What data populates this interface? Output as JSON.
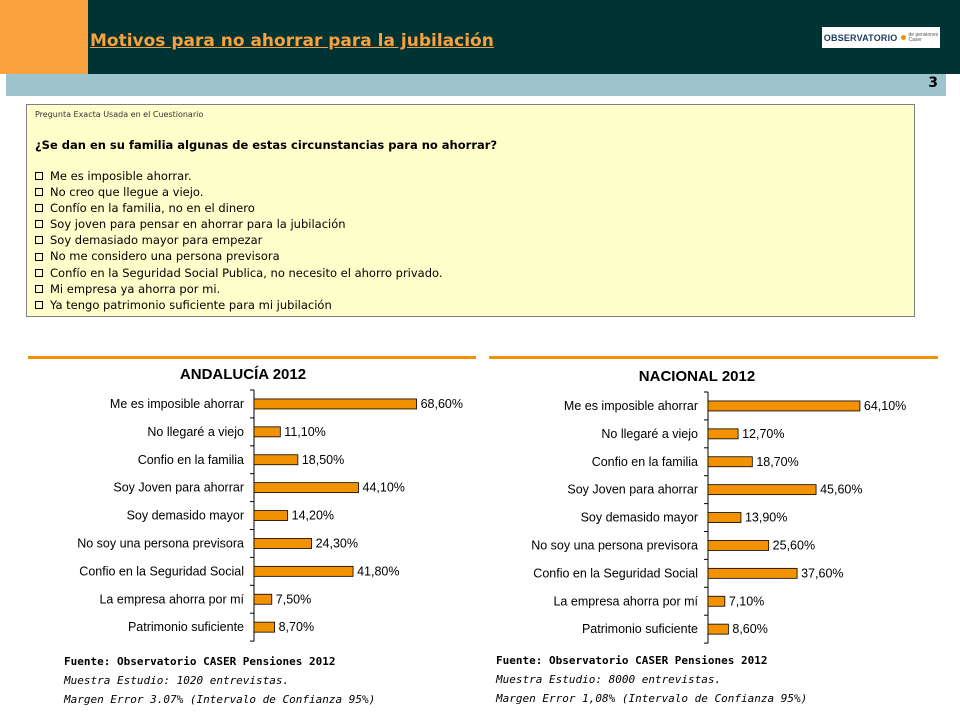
{
  "header": {
    "title": "Motivos para no ahorrar para la jubilación",
    "logo_main": "OBSERVATORIO",
    "logo_sub_1": "de pensiones",
    "logo_sub_2": "Caser",
    "page_number": "3"
  },
  "colors": {
    "accent_orange": "#f9a03f",
    "header_dark": "#003333",
    "band_blue": "#9dc3cd",
    "box_yellow": "#ffffcc",
    "bar_fill": "#f39200"
  },
  "question_box": {
    "caption": "Pregunta Exacta Usada en el Cuestionario",
    "question": "¿Se dan en su familia algunas de estas circunstancias para no ahorrar?",
    "options": [
      "Me es imposible  ahorrar.",
      "No creo que llegue  a viejo.",
      "Confío en la familia, no en el dinero",
      "Soy joven para pensar en ahorrar para la jubilación",
      "Soy demasiado mayor para empezar",
      "No me considero una persona previsora",
      "Confío en la Seguridad Social Publica, no necesito el ahorro privado.",
      "Mi empresa ya ahorra por mi.",
      "Ya tengo patrimonio  suficiente para mi jubilación"
    ]
  },
  "chart_data": [
    {
      "type": "bar",
      "orientation": "horizontal",
      "title": "ANDALUCÍA 2012",
      "categories": [
        "Me es imposible ahorrar",
        "No llegaré a viejo",
        "Confio en la familia",
        "Soy Joven para ahorrar",
        "Soy demasido mayor",
        "No soy una persona previsora",
        "Confio en la Seguridad Social",
        "La empresa ahorra por mí",
        "Patrimonio suficiente"
      ],
      "values": [
        68.6,
        11.1,
        18.5,
        44.1,
        14.2,
        24.3,
        41.8,
        7.5,
        8.7
      ],
      "value_labels": [
        "68,60%",
        "11,10%",
        "18,50%",
        "44,10%",
        "14,20%",
        "24,30%",
        "41,80%",
        "7,50%",
        "8,70%"
      ],
      "xlim": [
        0,
        100
      ],
      "grid": false,
      "legend": "none"
    },
    {
      "type": "bar",
      "orientation": "horizontal",
      "title": "NACIONAL 2012",
      "categories": [
        "Me es imposible ahorrar",
        "No llegaré a viejo",
        "Confio en la familia",
        "Soy Joven para ahorrar",
        "Soy demasido mayor",
        "No soy una persona previsora",
        "Confio en la Seguridad Social",
        "La empresa ahorra por mí",
        "Patrimonio suficiente"
      ],
      "values": [
        64.1,
        12.7,
        18.7,
        45.6,
        13.9,
        25.6,
        37.6,
        7.1,
        8.6
      ],
      "value_labels": [
        "64,10%",
        "12,70%",
        "18,70%",
        "45,60%",
        "13,90%",
        "25,60%",
        "37,60%",
        "7,10%",
        "8,60%"
      ],
      "xlim": [
        0,
        100
      ],
      "grid": false,
      "legend": "none"
    }
  ],
  "sources": [
    {
      "line1": "Fuente: Observatorio CASER Pensiones 2012",
      "line2": "Muestra Estudio: 1020 entrevistas.",
      "line3": "Margen Error 3.07% (Intervalo de Confianza 95%)"
    },
    {
      "line1": "Fuente: Observatorio CASER Pensiones 2012",
      "line2": "Muestra Estudio: 8000 entrevistas.",
      "line3": "Margen Error 1,08% (Intervalo de Confianza 95%)"
    }
  ]
}
